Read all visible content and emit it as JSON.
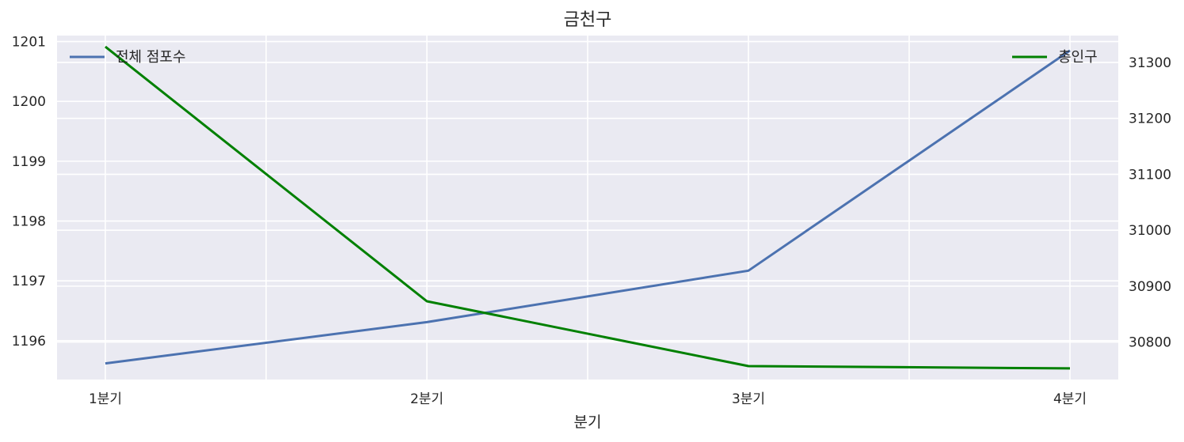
{
  "chart_data": {
    "type": "line",
    "title": "금천구",
    "xlabel": "분기",
    "categories": [
      "1분기",
      "2분기",
      "3분기",
      "4분기"
    ],
    "grid": true,
    "series": [
      {
        "name": "전체 점포수",
        "axis": "left",
        "color": "#4c72b0",
        "values": [
          1195.62,
          1196.31,
          1197.17,
          1200.85
        ],
        "legend": "top-left"
      },
      {
        "name": "총인구",
        "axis": "right",
        "color": "#008000",
        "values": [
          31328,
          30873,
          30757,
          30753
        ],
        "legend": "top-right"
      }
    ],
    "y_left": {
      "ylim": [
        1195.35,
        1201.1
      ],
      "ticks": [
        1196,
        1197,
        1198,
        1199,
        1200,
        1201
      ]
    },
    "y_right": {
      "ylim": [
        30733,
        31348
      ],
      "ticks": [
        30800,
        30900,
        31000,
        31100,
        31200,
        31300
      ]
    },
    "background": "#eaeaf2"
  }
}
